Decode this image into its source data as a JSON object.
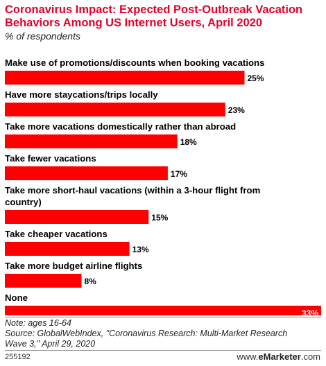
{
  "header": {
    "title": "Coronavirus Impact: Expected Post-Outbreak Vacation Behaviors Among US Internet Users, April 2020",
    "subtitle": "% of respondents"
  },
  "chart_data": {
    "type": "bar",
    "orientation": "horizontal",
    "categories": [
      "Make use of promotions/discounts when booking vacations",
      "Have more staycations/trips locally",
      "Take more vacations domestically rather than abroad",
      "Take fewer vacations",
      "Take more short-haul vacations (within a 3-hour flight from country)",
      "Take cheaper vacations",
      "Take more budget airline flights",
      "None"
    ],
    "values": [
      25,
      23,
      18,
      17,
      15,
      13,
      8,
      33
    ],
    "value_suffix": "%",
    "xlim": [
      0,
      33
    ],
    "bar_color": "#ff0000",
    "grid": false
  },
  "footer": {
    "note": "Note: ages 16-64",
    "source_line1": "Source: GlobalWebIndex, \"Coronavirus Research: Multi-Market Research",
    "source_line2": "Wave 3,\" April 29, 2020",
    "chart_id": "255192",
    "brand_prefix": "www.",
    "brand_name": "eMarketer",
    "brand_suffix": ".com"
  }
}
